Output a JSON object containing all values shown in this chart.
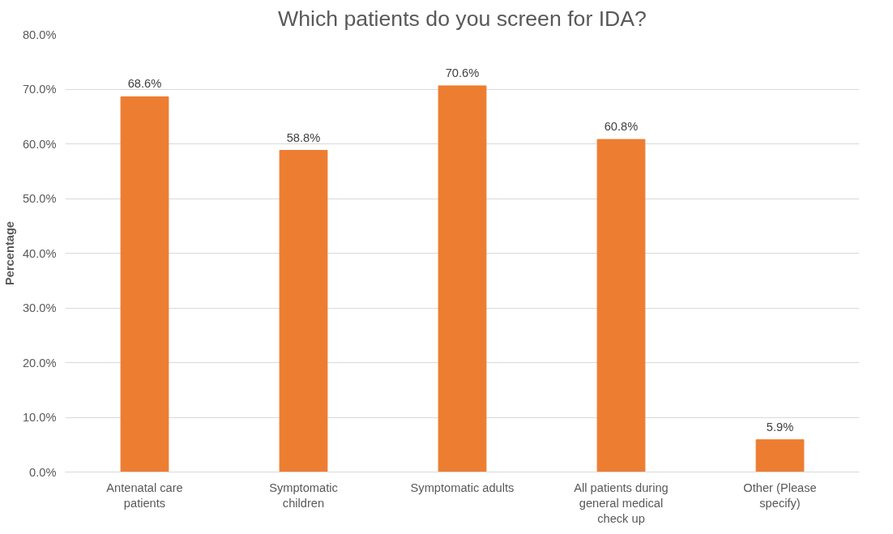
{
  "chart_data": {
    "type": "bar",
    "title": "Which patients do you screen for IDA?",
    "ylabel": "Percentage",
    "categories": [
      "Antenatal care patients",
      "Symptomatic children",
      "Symptomatic adults",
      "All patients during general medical check up",
      "Other (Please specify)"
    ],
    "values": [
      68.6,
      58.8,
      70.6,
      60.8,
      5.9
    ],
    "value_labels": [
      "68.6%",
      "58.8%",
      "70.6%",
      "60.8%",
      "5.9%"
    ],
    "color": "#ed7d31",
    "ylim": [
      0,
      80
    ],
    "yticks": [
      {
        "value": 0,
        "label": "0.0%"
      },
      {
        "value": 10,
        "label": "10.0%"
      },
      {
        "value": 20,
        "label": "20.0%"
      },
      {
        "value": 30,
        "label": "30.0%"
      },
      {
        "value": 40,
        "label": "40.0%"
      },
      {
        "value": 50,
        "label": "50.0%"
      },
      {
        "value": 60,
        "label": "60.0%"
      },
      {
        "value": 70,
        "label": "70.0%"
      },
      {
        "value": 80,
        "label": "80.0%"
      }
    ],
    "grid": "y"
  }
}
